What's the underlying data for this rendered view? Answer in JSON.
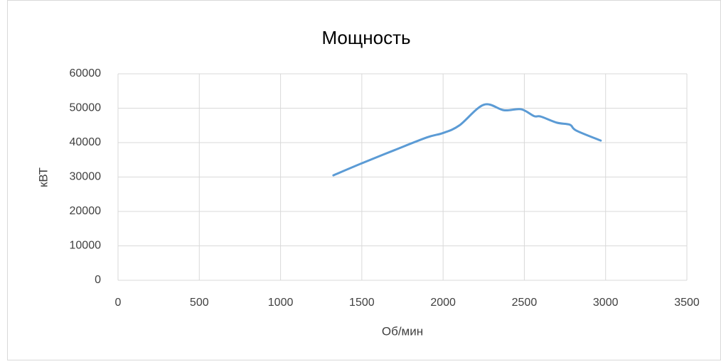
{
  "chart_data": {
    "type": "line",
    "title": "Мощность",
    "x_label": "Об/мин",
    "y_label": "кВТ",
    "x": [
      1325,
      1500,
      1700,
      1900,
      2000,
      2100,
      2250,
      2375,
      2480,
      2560,
      2600,
      2700,
      2780,
      2820,
      2970
    ],
    "values": [
      30500,
      34000,
      37800,
      41500,
      42800,
      45000,
      51000,
      49400,
      49700,
      47700,
      47600,
      45800,
      45200,
      43500,
      40600
    ],
    "color": "#5b9bd5",
    "xlim": [
      0,
      3500
    ],
    "xticks": [
      0,
      500,
      1000,
      1500,
      2000,
      2500,
      3000,
      3500
    ],
    "ylim": [
      0,
      60000
    ],
    "yticks": [
      0,
      10000,
      20000,
      30000,
      40000,
      50000,
      60000
    ],
    "grid": true
  }
}
